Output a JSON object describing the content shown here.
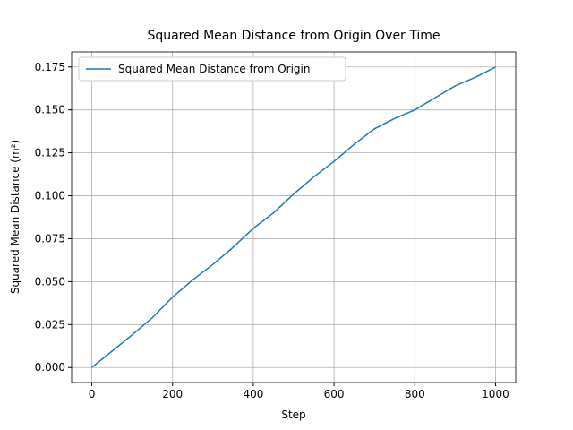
{
  "chart_data": {
    "type": "line",
    "title": "Squared Mean Distance from Origin Over Time",
    "x_label": "Step",
    "y_label": "Squared Mean Distance (m²)",
    "x": [
      0,
      50,
      100,
      150,
      200,
      250,
      300,
      350,
      400,
      450,
      500,
      550,
      600,
      650,
      700,
      750,
      800,
      850,
      900,
      950,
      1000
    ],
    "series": [
      {
        "name": "Squared Mean Distance from Origin",
        "color": "#1f77b4",
        "values": [
          0,
          0.0095,
          0.019,
          0.029,
          0.041,
          0.051,
          0.06,
          0.07,
          0.081,
          0.09,
          0.101,
          0.111,
          0.12,
          0.13,
          0.139,
          0.145,
          0.15,
          0.157,
          0.164,
          0.169,
          0.175
        ]
      }
    ],
    "xlim": [
      -50,
      1050
    ],
    "ylim": [
      -0.00875,
      0.18375
    ],
    "xticks": [
      0,
      200,
      400,
      600,
      800,
      1000
    ],
    "yticks": [
      {
        "value": 0,
        "label": "0.000"
      },
      {
        "value": 0.025,
        "label": "0.025"
      },
      {
        "value": 0.05,
        "label": "0.050"
      },
      {
        "value": 0.075,
        "label": "0.075"
      },
      {
        "value": 0.1,
        "label": "0.100"
      },
      {
        "value": 0.125,
        "label": "0.125"
      },
      {
        "value": 0.15,
        "label": "0.150"
      },
      {
        "value": 0.175,
        "label": "0.175"
      }
    ],
    "grid": true,
    "legend": "upper left"
  }
}
